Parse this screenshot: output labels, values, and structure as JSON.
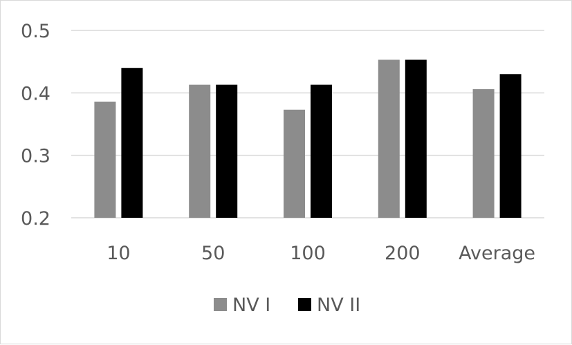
{
  "chart_data": {
    "type": "bar",
    "categories": [
      "10",
      "50",
      "100",
      "200",
      "Average"
    ],
    "series": [
      {
        "name": "NV I",
        "values": [
          0.386,
          0.413,
          0.373,
          0.453,
          0.406
        ],
        "color": "#8c8c8c"
      },
      {
        "name": "NV II",
        "values": [
          0.44,
          0.413,
          0.413,
          0.453,
          0.43
        ],
        "color": "#000000"
      }
    ],
    "ylim": [
      0.2,
      0.5
    ],
    "yticks": [
      "0.2",
      "0.3",
      "0.4",
      "0.5"
    ],
    "grid": true,
    "gridColor": "#d9d9d9",
    "legend": "bottom"
  }
}
